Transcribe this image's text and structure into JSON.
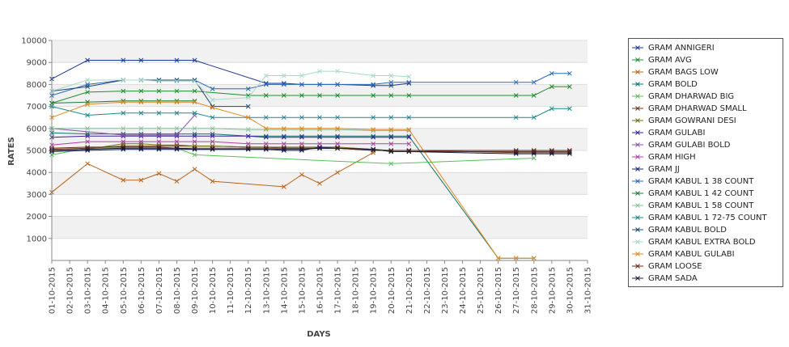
{
  "chart_data": {
    "type": "line",
    "title": "",
    "xlabel": "DAYS",
    "ylabel": "RATES",
    "ylim": [
      0,
      10000
    ],
    "yticks": [
      1000,
      2000,
      3000,
      4000,
      5000,
      6000,
      7000,
      8000,
      9000,
      10000
    ],
    "grid": true,
    "legend_position": "right",
    "categories": [
      "01-10-2015",
      "02-10-2015",
      "03-10-2015",
      "04-10-2015",
      "05-10-2015",
      "06-10-2015",
      "07-10-2015",
      "08-10-2015",
      "09-10-2015",
      "10-10-2015",
      "11-10-2015",
      "12-10-2015",
      "13-10-2015",
      "14-10-2015",
      "15-10-2015",
      "16-10-2015",
      "17-10-2015",
      "18-10-2015",
      "19-10-2015",
      "20-10-2015",
      "21-10-2015",
      "22-10-2015",
      "23-10-2015",
      "24-10-2015",
      "25-10-2015",
      "26-10-2015",
      "27-10-2015",
      "28-10-2015",
      "29-10-2015",
      "30-10-2015",
      "31-10-2015"
    ],
    "series": [
      {
        "name": "GRAM ANNIGERI",
        "color": "#1f3a93",
        "values": [
          8250,
          null,
          9100,
          null,
          9100,
          9100,
          null,
          9100,
          9100,
          null,
          null,
          null,
          8050,
          8050,
          8000,
          8000,
          8000,
          null,
          7950,
          7950,
          8050,
          null,
          null,
          null,
          null,
          null,
          null,
          null,
          null,
          null,
          null
        ]
      },
      {
        "name": "GRAM AVG",
        "color": "#1e8f2e",
        "values": [
          7150,
          null,
          7650,
          null,
          7700,
          7700,
          7700,
          7700,
          7700,
          null,
          null,
          7500,
          7500,
          7500,
          7500,
          7500,
          7500,
          null,
          7500,
          7500,
          7500,
          null,
          null,
          null,
          null,
          null,
          7500,
          7500,
          7900,
          7900,
          null
        ]
      },
      {
        "name": "GRAM BAGS LOW",
        "color": "#b8651c",
        "values": [
          3100,
          null,
          4400,
          null,
          3650,
          3650,
          3950,
          3600,
          4150,
          3600,
          null,
          null,
          null,
          3350,
          3900,
          3500,
          4000,
          null,
          4900,
          null,
          null,
          null,
          null,
          null,
          null,
          null,
          null,
          null,
          null,
          null,
          null
        ]
      },
      {
        "name": "GRAM BOLD",
        "color": "#12736b",
        "values": [
          5800,
          null,
          5750,
          null,
          5750,
          5750,
          5750,
          5750,
          5750,
          5750,
          null,
          5650,
          5650,
          5650,
          5650,
          5650,
          5650,
          null,
          5650,
          5650,
          5650,
          null,
          null,
          null,
          null,
          100,
          100,
          100,
          null,
          null,
          null
        ]
      },
      {
        "name": "GRAM DHARWAD BIG",
        "color": "#55c255",
        "values": [
          4800,
          null,
          5100,
          null,
          5100,
          5100,
          5100,
          5100,
          4800,
          null,
          null,
          null,
          null,
          null,
          null,
          null,
          null,
          null,
          null,
          4400,
          null,
          null,
          null,
          null,
          null,
          null,
          null,
          4650,
          null,
          null,
          null
        ]
      },
      {
        "name": "GRAM DHARWAD SMALL",
        "color": "#6b3a1a",
        "values": [
          5050,
          null,
          5100,
          null,
          5200,
          5200,
          5200,
          5200,
          5200,
          5200,
          null,
          5150,
          5150,
          5100,
          5100,
          5100,
          5100,
          null,
          5000,
          5000,
          5000,
          null,
          null,
          null,
          null,
          null,
          4900,
          4900,
          4900,
          4900,
          null
        ]
      },
      {
        "name": "GRAM GOWRANI DESI",
        "color": "#6e6e14",
        "values": [
          5000,
          null,
          5050,
          null,
          5300,
          5300,
          5250,
          5250,
          5200,
          5200,
          null,
          5150,
          5150,
          5150,
          5150,
          5150,
          5150,
          null,
          5050,
          5000,
          5000,
          null,
          null,
          null,
          null,
          null,
          5000,
          5000,
          5000,
          5000,
          null
        ]
      },
      {
        "name": "GRAM GULABI",
        "color": "#3a1fa0",
        "values": [
          5600,
          null,
          5650,
          null,
          5650,
          5650,
          5650,
          5650,
          5650,
          5650,
          null,
          5650,
          5600,
          5600,
          5600,
          5600,
          5600,
          null,
          5600,
          5600,
          5600,
          null,
          null,
          null,
          null,
          null,
          null,
          null,
          null,
          null,
          null
        ]
      },
      {
        "name": "GRAM GULABI BOLD",
        "color": "#8855aa",
        "values": [
          6000,
          null,
          null,
          null,
          5700,
          5700,
          5700,
          5700,
          6600,
          null,
          null,
          null,
          null,
          null,
          null,
          null,
          null,
          null,
          null,
          null,
          null,
          null,
          null,
          null,
          null,
          null,
          null,
          null,
          null,
          null,
          null
        ]
      },
      {
        "name": "GRAM HIGH",
        "color": "#b23fa6",
        "values": [
          5250,
          null,
          5400,
          null,
          5400,
          5400,
          5400,
          5400,
          5400,
          5400,
          null,
          5300,
          5300,
          5300,
          5300,
          5300,
          5300,
          null,
          5300,
          5300,
          5300,
          null,
          null,
          null,
          null,
          null,
          null,
          null,
          null,
          null,
          null
        ]
      },
      {
        "name": "GRAM JJ",
        "color": "#1a2a6e",
        "values": [
          4950,
          null,
          5000,
          null,
          5050,
          5050,
          5050,
          5050,
          5050,
          5050,
          null,
          5050,
          5050,
          5000,
          5000,
          5150,
          5100,
          null,
          5050,
          4950,
          4950,
          null,
          null,
          null,
          null,
          null,
          4950,
          4950,
          4950,
          4950,
          null
        ]
      },
      {
        "name": "GRAM KABUL 1 38 COUNT",
        "color": "#2a6ab8",
        "values": [
          7500,
          null,
          8000,
          null,
          8200,
          8200,
          8200,
          8200,
          8200,
          7800,
          null,
          7800,
          8000,
          8000,
          8000,
          8000,
          8000,
          null,
          8000,
          8100,
          8100,
          null,
          null,
          null,
          null,
          null,
          8100,
          8100,
          8500,
          8500,
          null
        ]
      },
      {
        "name": "GRAM KABUL 1 42 COUNT",
        "color": "#1e7a3a",
        "values": [
          7150,
          null,
          7200,
          null,
          7250,
          7250,
          7250,
          7250,
          7250,
          null,
          null,
          null,
          null,
          null,
          null,
          null,
          null,
          null,
          null,
          null,
          null,
          null,
          null,
          null,
          null,
          null,
          null,
          null,
          null,
          null,
          null
        ]
      },
      {
        "name": "GRAM KABUL 1 58 COUNT",
        "color": "#8abf9a",
        "values": [
          6000,
          null,
          6000,
          null,
          6000,
          6000,
          6000,
          6000,
          6000,
          6000,
          null,
          5950,
          5950,
          5950,
          5950,
          5950,
          5950,
          null,
          5900,
          5900,
          5900,
          null,
          null,
          null,
          null,
          null,
          null,
          null,
          null,
          null,
          null
        ]
      },
      {
        "name": "GRAM KABUL 1 72-75 COUNT",
        "color": "#1a8a8a",
        "values": [
          7000,
          null,
          6600,
          null,
          6700,
          6700,
          6700,
          6700,
          6700,
          6500,
          null,
          6500,
          6500,
          6500,
          6500,
          6500,
          6500,
          null,
          6500,
          6500,
          6500,
          null,
          null,
          null,
          null,
          null,
          6500,
          6500,
          6900,
          6900,
          null
        ]
      },
      {
        "name": "GRAM KABUL BOLD",
        "color": "#1a4a7a",
        "values": [
          7700,
          null,
          7900,
          null,
          8200,
          8200,
          8200,
          8200,
          8200,
          7000,
          null,
          7000,
          null,
          null,
          null,
          null,
          null,
          null,
          null,
          null,
          null,
          null,
          null,
          null,
          null,
          null,
          null,
          null,
          null,
          null,
          null
        ]
      },
      {
        "name": "GRAM KABUL EXTRA BOLD",
        "color": "#a8d8c8",
        "values": [
          7700,
          null,
          8200,
          null,
          8200,
          8200,
          8150,
          8150,
          8150,
          7300,
          null,
          7400,
          8400,
          8400,
          8400,
          8600,
          8600,
          null,
          8400,
          8400,
          8350,
          null,
          null,
          null,
          null,
          null,
          null,
          null,
          null,
          null,
          null
        ]
      },
      {
        "name": "GRAM KABUL GULABI",
        "color": "#e08a20",
        "values": [
          6500,
          null,
          7100,
          null,
          7200,
          7200,
          7200,
          7200,
          7200,
          6950,
          null,
          6500,
          6000,
          6000,
          6000,
          6000,
          6000,
          null,
          5950,
          5950,
          5950,
          null,
          null,
          null,
          null,
          100,
          100,
          100,
          null,
          null,
          null
        ]
      },
      {
        "name": "GRAM LOOSE",
        "color": "#6b2a1a",
        "values": [
          5100,
          null,
          5150,
          null,
          5150,
          5150,
          5150,
          5100,
          5100,
          5100,
          null,
          5100,
          5100,
          5100,
          5100,
          5100,
          5100,
          null,
          5000,
          5000,
          5000,
          null,
          null,
          null,
          null,
          null,
          5000,
          5000,
          5000,
          5000,
          null
        ]
      },
      {
        "name": "GRAM SADA",
        "color": "#1a1a3a",
        "values": [
          5000,
          null,
          5050,
          null,
          5100,
          5100,
          5100,
          5100,
          5050,
          5050,
          null,
          5050,
          5050,
          5050,
          5050,
          5100,
          5100,
          null,
          5050,
          4950,
          4950,
          null,
          null,
          null,
          null,
          null,
          4850,
          4850,
          4850,
          4850,
          null
        ]
      }
    ]
  }
}
